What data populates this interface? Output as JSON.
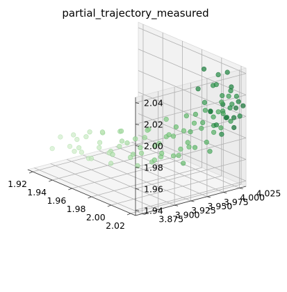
{
  "chart_data": {
    "type": "scatter",
    "title": "partial_trajectory_measured",
    "projection": "3d",
    "grid": true,
    "legend": "none",
    "colormap": "Greens",
    "xlim": [
      1.915,
      2.025
    ],
    "ylim": [
      3.865,
      4.035
    ],
    "zlim": [
      1.935,
      2.045
    ],
    "x_ticks": [
      "1.92",
      "1.94",
      "1.96",
      "1.98",
      "2.00",
      "2.02"
    ],
    "y_ticks": [
      "3.875",
      "3.900",
      "3.925",
      "3.950",
      "3.975",
      "4.000",
      "4.025"
    ],
    "z_ticks": [
      "1.94",
      "1.96",
      "1.98",
      "2.00",
      "2.02",
      "2.04"
    ],
    "x_tick_values": [
      1.92,
      1.94,
      1.96,
      1.98,
      2.0,
      2.02
    ],
    "y_tick_values": [
      3.875,
      3.9,
      3.925,
      3.95,
      3.975,
      4.0,
      4.025
    ],
    "z_tick_values": [
      1.94,
      1.96,
      1.98,
      2.0,
      2.02,
      2.04
    ],
    "points": [
      [
        1.935,
        3.885,
        1.97,
        0.05
      ],
      [
        1.94,
        3.892,
        1.962,
        0.06
      ],
      [
        1.93,
        3.88,
        1.958,
        0.05
      ],
      [
        1.945,
        3.89,
        1.975,
        0.08
      ],
      [
        1.942,
        3.9,
        1.968,
        0.08
      ],
      [
        1.95,
        3.895,
        1.96,
        0.1
      ],
      [
        1.938,
        3.902,
        1.955,
        0.09
      ],
      [
        1.948,
        3.905,
        1.972,
        0.11
      ],
      [
        1.952,
        3.888,
        1.966,
        0.11
      ],
      [
        1.955,
        3.9,
        1.98,
        0.13
      ],
      [
        1.958,
        3.91,
        1.965,
        0.14
      ],
      [
        1.946,
        3.912,
        1.95,
        0.13
      ],
      [
        1.96,
        3.895,
        1.958,
        0.15
      ],
      [
        1.962,
        3.905,
        1.972,
        0.16
      ],
      [
        1.965,
        3.915,
        1.962,
        0.17
      ],
      [
        1.955,
        3.92,
        1.976,
        0.17
      ],
      [
        1.968,
        3.9,
        1.985,
        0.19
      ],
      [
        1.97,
        3.91,
        1.955,
        0.2
      ],
      [
        1.972,
        3.92,
        1.97,
        0.21
      ],
      [
        1.96,
        3.925,
        1.96,
        0.21
      ],
      [
        1.975,
        3.905,
        1.966,
        0.23
      ],
      [
        1.966,
        3.93,
        1.98,
        0.23
      ],
      [
        1.978,
        3.915,
        1.978,
        0.25
      ],
      [
        1.98,
        3.925,
        1.962,
        0.26
      ],
      [
        1.97,
        3.935,
        1.97,
        0.26
      ],
      [
        1.982,
        3.908,
        1.99,
        0.28
      ],
      [
        1.984,
        3.93,
        1.955,
        0.29
      ],
      [
        1.975,
        3.94,
        1.975,
        0.3
      ],
      [
        1.986,
        3.92,
        1.968,
        0.31
      ],
      [
        1.988,
        3.935,
        1.982,
        0.32
      ],
      [
        1.978,
        3.945,
        1.962,
        0.33
      ],
      [
        1.99,
        3.925,
        1.975,
        0.34
      ],
      [
        1.992,
        3.94,
        1.96,
        0.35
      ],
      [
        1.982,
        3.95,
        1.985,
        0.36
      ],
      [
        1.994,
        3.93,
        1.992,
        0.37
      ],
      [
        1.985,
        3.955,
        1.97,
        0.38
      ],
      [
        1.996,
        3.945,
        1.978,
        0.39
      ],
      [
        1.998,
        3.935,
        1.965,
        0.4
      ],
      [
        1.988,
        3.96,
        1.96,
        0.41
      ],
      [
        2.0,
        3.95,
        1.985,
        0.42
      ],
      [
        1.99,
        3.965,
        1.995,
        0.43
      ],
      [
        2.002,
        3.94,
        1.972,
        0.44
      ],
      [
        2.004,
        3.955,
        1.968,
        0.45
      ],
      [
        1.994,
        3.97,
        1.98,
        0.46
      ],
      [
        2.006,
        3.945,
        1.99,
        0.47
      ],
      [
        1.996,
        3.975,
        1.962,
        0.48
      ],
      [
        2.008,
        3.96,
        1.975,
        0.49
      ],
      [
        1.998,
        3.98,
        1.985,
        0.5
      ],
      [
        2.01,
        3.95,
        1.998,
        0.51
      ],
      [
        2.0,
        3.985,
        1.97,
        0.52
      ],
      [
        2.012,
        3.965,
        1.982,
        0.53
      ],
      [
        2.002,
        3.99,
        1.992,
        0.54
      ],
      [
        2.014,
        3.955,
        1.965,
        0.55
      ],
      [
        2.004,
        3.975,
        2.002,
        0.56
      ],
      [
        2.016,
        3.97,
        1.978,
        0.57
      ],
      [
        2.006,
        3.995,
        1.988,
        0.58
      ],
      [
        2.018,
        3.96,
        1.995,
        0.59
      ],
      [
        2.008,
        4.0,
        1.975,
        0.6
      ],
      [
        2.01,
        3.98,
        2.005,
        0.61
      ],
      [
        2.012,
        4.005,
        1.985,
        0.62
      ],
      [
        2.014,
        3.985,
        1.998,
        0.63
      ],
      [
        2.016,
        4.01,
        1.99,
        0.64
      ],
      [
        2.018,
        3.99,
        1.972,
        0.65
      ],
      [
        2.02,
        4.0,
        2.008,
        0.66
      ],
      [
        2.0,
        4.01,
        2.0,
        0.67
      ],
      [
        2.005,
        4.015,
        1.995,
        0.68
      ],
      [
        2.01,
        4.02,
        2.01,
        0.69
      ],
      [
        2.015,
        4.015,
        2.002,
        0.7
      ],
      [
        2.002,
        4.02,
        1.985,
        0.71
      ],
      [
        2.008,
        4.025,
        2.0,
        0.72
      ],
      [
        2.012,
        4.028,
        2.015,
        0.73
      ],
      [
        2.018,
        4.022,
        1.995,
        0.74
      ],
      [
        1.996,
        4.015,
        2.005,
        0.75
      ],
      [
        2.004,
        4.03,
        2.012,
        0.76
      ],
      [
        2.014,
        4.03,
        2.008,
        0.77
      ],
      [
        2.02,
        4.028,
        2.018,
        0.78
      ],
      [
        1.998,
        4.025,
        2.02,
        0.79
      ],
      [
        2.006,
        4.018,
        2.025,
        0.8
      ],
      [
        2.016,
        4.025,
        2.022,
        0.81
      ],
      [
        2.022,
        4.015,
        2.01,
        0.82
      ],
      [
        2.0,
        4.03,
        2.03,
        0.83
      ],
      [
        2.01,
        4.012,
        1.99,
        0.84
      ],
      [
        2.018,
        4.008,
        1.985,
        0.85
      ],
      [
        2.022,
        4.03,
        2.0,
        0.86
      ],
      [
        1.994,
        4.008,
        2.018,
        0.87
      ],
      [
        2.008,
        4.032,
        2.035,
        0.88
      ],
      [
        2.02,
        4.02,
        2.028,
        0.89
      ],
      [
        2.024,
        4.025,
        2.015,
        0.9
      ],
      [
        2.012,
        4.0,
        2.005,
        0.91
      ],
      [
        2.002,
        4.005,
        2.04,
        0.92
      ],
      [
        2.016,
        4.018,
        1.998,
        0.93
      ],
      [
        2.022,
        4.01,
        2.002,
        0.94
      ],
      [
        2.006,
        4.028,
        2.005,
        0.95
      ],
      [
        2.014,
        4.033,
        1.995,
        0.96
      ],
      [
        2.024,
        4.032,
        2.01,
        0.97
      ],
      [
        2.0,
        4.018,
        1.998,
        0.98
      ],
      [
        2.018,
        4.03,
        2.006,
        0.99
      ],
      [
        2.024,
        4.018,
        1.992,
        1.0
      ]
    ]
  }
}
